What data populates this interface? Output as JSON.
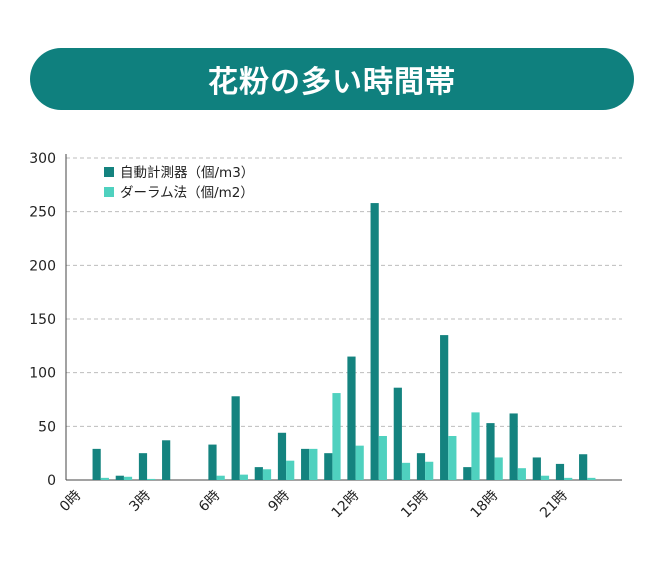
{
  "title": "花粉の多い時間帯",
  "colors": {
    "banner": "#0f807e",
    "series1": "#14837f",
    "series2": "#4fd1bf",
    "grid": "#bdbdbd"
  },
  "chart_data": {
    "type": "bar",
    "categories": [
      "0時",
      "1時",
      "2時",
      "3時",
      "4時",
      "5時",
      "6時",
      "7時",
      "8時",
      "9時",
      "10時",
      "11時",
      "12時",
      "13時",
      "14時",
      "15時",
      "16時",
      "17時",
      "18時",
      "19時",
      "20時",
      "21時",
      "22時",
      "23時"
    ],
    "tick_labels": [
      "0時",
      "3時",
      "6時",
      "9時",
      "12時",
      "15時",
      "18時",
      "21時"
    ],
    "series": [
      {
        "name": "自動計測器（個/m3）",
        "values": [
          0,
          29,
          4,
          25,
          37,
          0,
          33,
          78,
          12,
          44,
          29,
          25,
          115,
          258,
          86,
          25,
          135,
          12,
          53,
          62,
          21,
          15,
          24,
          0
        ]
      },
      {
        "name": "ダーラム法（個/m2）",
        "values": [
          0,
          2,
          3,
          1,
          0,
          0,
          4,
          5,
          10,
          18,
          29,
          81,
          32,
          41,
          16,
          17,
          41,
          63,
          21,
          11,
          4,
          2,
          2,
          0
        ]
      }
    ],
    "ylim": [
      0,
      300
    ],
    "yticks": [
      0,
      50,
      100,
      150,
      200,
      250,
      300
    ],
    "grid": true,
    "legend_position": "top-left"
  }
}
